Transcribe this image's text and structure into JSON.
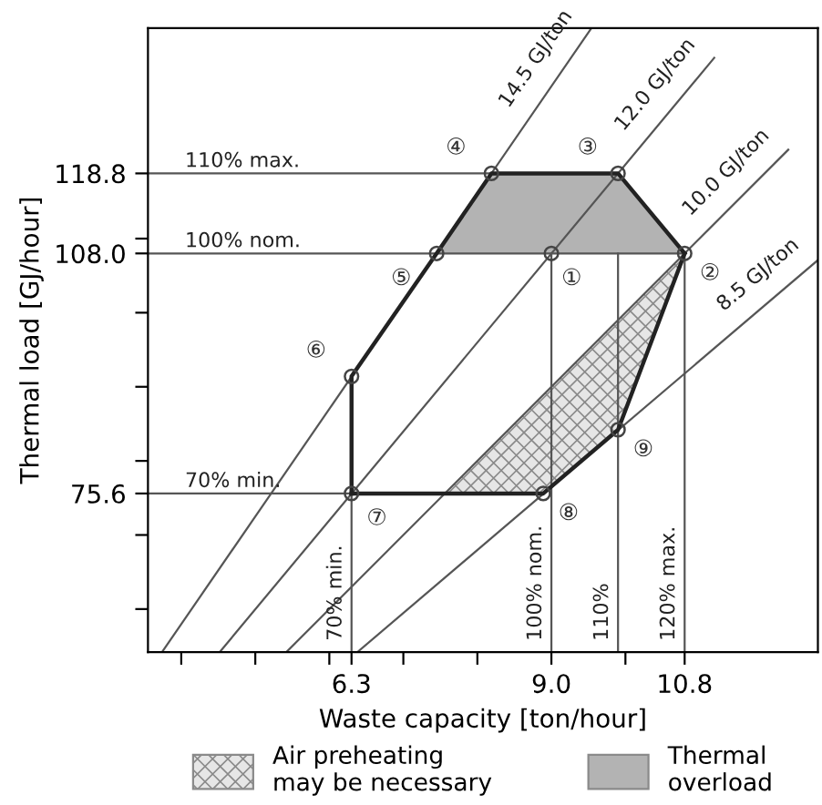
{
  "chart_data": {
    "type": "line",
    "xlabel": "Waste capacity [ton/hour]",
    "ylabel": "Thermal load [GJ/hour]",
    "xlim": [
      3.55,
      12.6
    ],
    "ylim": [
      54.2,
      138.4
    ],
    "xticks": [
      {
        "value": 4,
        "label": null
      },
      {
        "value": 5,
        "label": null
      },
      {
        "value": 6,
        "label": null
      },
      6.3,
      {
        "value": 7,
        "label": null
      },
      {
        "value": 8,
        "label": null
      },
      {
        "value": 9,
        "label": "9.0"
      },
      {
        "value": 10,
        "label": null
      },
      10.8
    ],
    "yticks": [
      {
        "value": 60,
        "label": null
      },
      {
        "value": 70,
        "label": null
      },
      75.6,
      {
        "value": 80,
        "label": null
      },
      {
        "value": 90,
        "label": null
      },
      {
        "value": 100,
        "label": null
      },
      {
        "value": 108,
        "label": "108.0"
      },
      {
        "value": 110,
        "label": null
      },
      118.8
    ],
    "grid": false,
    "legend": "bottom",
    "series": [
      {
        "name": "Air preheating\nmay be necessary",
        "type": "area",
        "color": "#e6e6e6",
        "x": [
          10.8,
          7.56,
          8.89,
          9.9
        ],
        "values": [
          108,
          75.6,
          75.6,
          84.2
        ]
      },
      {
        "name": "Thermal\noverload",
        "type": "area",
        "color": "#b3b3b3",
        "x": [
          7.45,
          8.19,
          9.9,
          10.8
        ],
        "values": [
          108,
          118.8,
          118.8,
          108
        ]
      },
      {
        "name": "14.5 GJ/ton",
        "color": "#555555",
        "x": [
          3.74,
          9.54
        ],
        "values": [
          54.2,
          138.4
        ]
      },
      {
        "name": "12.0 GJ/ton",
        "color": "#555555",
        "x": [
          4.52,
          11.2
        ],
        "values": [
          54.2,
          134.4
        ]
      },
      {
        "name": "10.0 GJ/ton",
        "color": "#555555",
        "x": [
          5.42,
          12.2
        ],
        "values": [
          54.2,
          122
        ]
      },
      {
        "name": "8.5 GJ/ton",
        "color": "#555555",
        "x": [
          6.38,
          12.6
        ],
        "values": [
          54.2,
          107.1
        ]
      },
      {
        "name": "110% max.",
        "color": "#555555",
        "x": [
          3.55,
          9.9
        ],
        "values": [
          118.8,
          118.8
        ]
      },
      {
        "name": "100% nom.",
        "color": "#555555",
        "x": [
          3.55,
          10.8
        ],
        "values": [
          108,
          108
        ]
      },
      {
        "name": "70% min.",
        "color": "#555555",
        "x": [
          3.55,
          8.89
        ],
        "values": [
          75.6,
          75.6
        ]
      },
      {
        "name": "70% min.",
        "color": "#555555",
        "x": [
          6.3,
          6.3
        ],
        "values": [
          54.2,
          91.4
        ]
      },
      {
        "name": "100% nom.",
        "color": "#555555",
        "x": [
          9.0,
          9.0
        ],
        "values": [
          54.2,
          108
        ]
      },
      {
        "name": "110%",
        "color": "#555555",
        "x": [
          9.9,
          9.9
        ],
        "values": [
          54.2,
          108
        ]
      },
      {
        "name": "120% max.",
        "color": "#555555",
        "x": [
          10.8,
          10.8
        ],
        "values": [
          54.2,
          108
        ]
      },
      {
        "color": "#222222",
        "x": [
          6.3,
          6.3,
          7.45,
          8.19,
          9.9,
          10.8
        ],
        "values": [
          75.6,
          91.4,
          108,
          118.8,
          118.8,
          108
        ]
      },
      {
        "color": "#222222",
        "x": [
          6.3,
          8.89,
          9.9,
          10.8
        ],
        "values": [
          75.6,
          75.6,
          84.2,
          108
        ]
      },
      {
        "type": "scatter",
        "marker": "circle",
        "color": "#444444",
        "x": [
          9.0,
          10.8,
          9.9,
          8.19,
          7.45,
          6.3,
          6.3,
          8.89,
          9.9
        ],
        "values": [
          108,
          108,
          118.8,
          118.8,
          108,
          91.4,
          75.6,
          75.6,
          84.2
        ]
      }
    ],
    "annotations": [
      {
        "text": "①",
        "x": 9.0,
        "y": 108
      },
      {
        "text": "②",
        "x": 10.8,
        "y": 108
      },
      {
        "text": "③",
        "x": 9.9,
        "y": 118.8
      },
      {
        "text": "④",
        "x": 8.19,
        "y": 118.8
      },
      {
        "text": "⑤",
        "x": 7.45,
        "y": 108
      },
      {
        "text": "⑥",
        "x": 6.3,
        "y": 91.4
      },
      {
        "text": "⑦",
        "x": 6.3,
        "y": 75.6
      },
      {
        "text": "⑧",
        "x": 8.89,
        "y": 75.6
      },
      {
        "text": "⑨",
        "x": 9.9,
        "y": 84.2
      }
    ]
  }
}
